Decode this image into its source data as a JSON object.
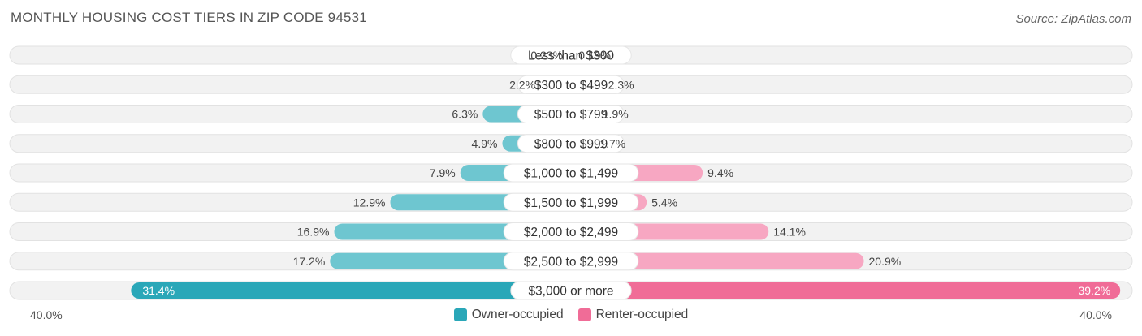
{
  "title": "MONTHLY HOUSING COST TIERS IN ZIP CODE 94531",
  "source": "Source: ZipAtlas.com",
  "colors": {
    "owner": "#6ec6d0",
    "owner_strong": "#2aa7b8",
    "renter": "#f7a7c2",
    "renter_strong": "#f06c97",
    "track": "#f2f2f2"
  },
  "chart_data": {
    "type": "bar",
    "orientation": "horizontal-diverging",
    "categories": [
      "Less than $300",
      "$300 to $499",
      "$500 to $799",
      "$800 to $999",
      "$1,000 to $1,499",
      "$1,500 to $1,999",
      "$2,000 to $2,499",
      "$2,500 to $2,999",
      "$3,000 or more"
    ],
    "series": [
      {
        "name": "Owner-occupied",
        "values": [
          0.23,
          2.2,
          6.3,
          4.9,
          7.9,
          12.9,
          16.9,
          17.2,
          31.4
        ],
        "labels": [
          "0.23%",
          "2.2%",
          "6.3%",
          "4.9%",
          "7.9%",
          "12.9%",
          "16.9%",
          "17.2%",
          "31.4%"
        ]
      },
      {
        "name": "Renter-occupied",
        "values": [
          0.19,
          2.3,
          1.9,
          1.7,
          9.4,
          5.4,
          14.1,
          20.9,
          39.2
        ],
        "labels": [
          "0.19%",
          "2.3%",
          "1.9%",
          "1.7%",
          "9.4%",
          "5.4%",
          "14.1%",
          "20.9%",
          "39.2%"
        ]
      }
    ],
    "xlim": [
      -40,
      40
    ],
    "axis_left_label": "40.0%",
    "axis_right_label": "40.0%",
    "legend_position": "bottom-center"
  }
}
